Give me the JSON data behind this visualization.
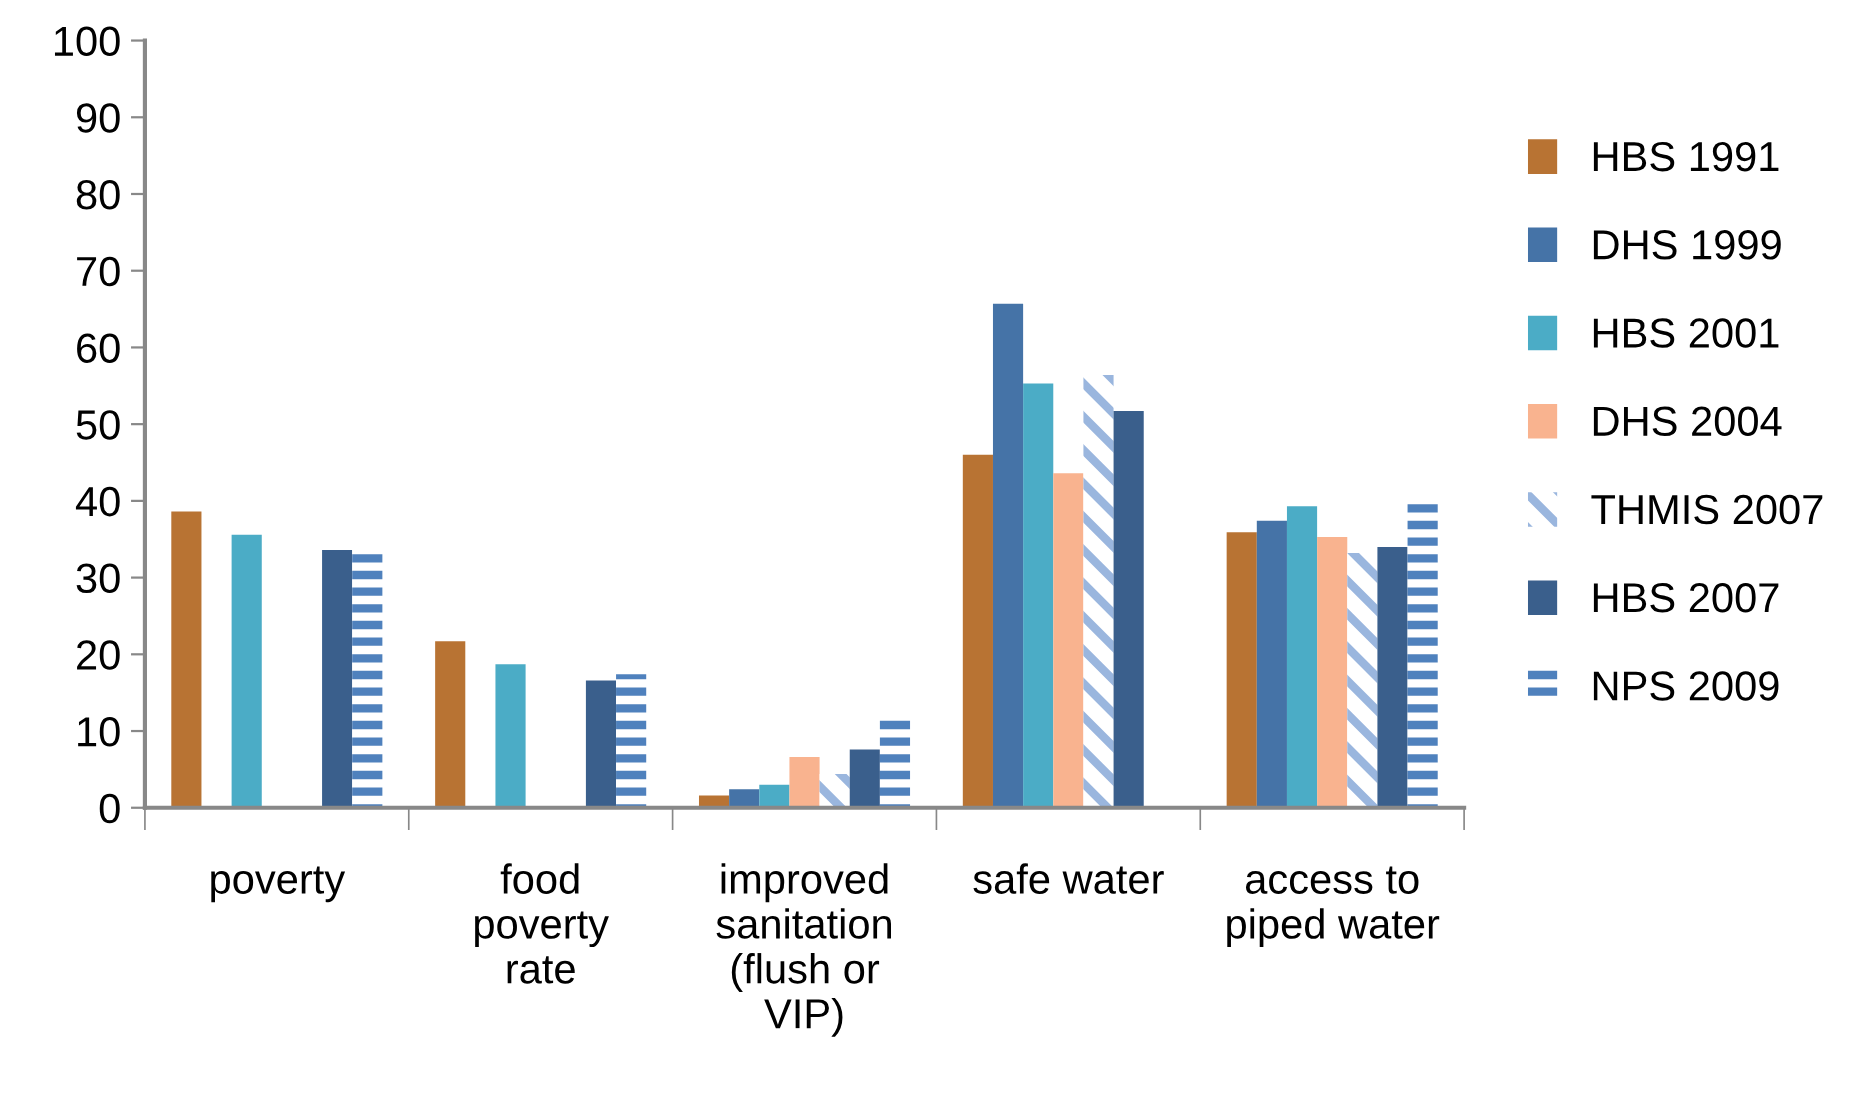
{
  "chart_data": {
    "type": "bar",
    "categories": [
      "poverty",
      "food\npoverty\nrate",
      "improved\nsanitation\n(flush or\nVIP)",
      "safe water",
      "access to\npiped water"
    ],
    "series": [
      {
        "name": "HBS 1991",
        "color": "#b87333",
        "values": [
          38.6,
          21.7,
          1.6,
          46.0,
          35.9
        ]
      },
      {
        "name": "DHS 1999",
        "color": "#4573a7",
        "values": [
          null,
          null,
          2.4,
          65.7,
          37.4
        ]
      },
      {
        "name": "HBS 2001",
        "color": "#4bacc6",
        "values": [
          35.6,
          18.7,
          3.0,
          55.3,
          39.3
        ]
      },
      {
        "name": "DHS 2004",
        "color": "#f9b38f",
        "values": [
          null,
          null,
          6.6,
          43.6,
          35.3
        ]
      },
      {
        "name": "THMIS 2007",
        "color": "#9ab6de",
        "values": [
          null,
          null,
          4.4,
          56.4,
          33.2
        ]
      },
      {
        "name": "HBS 2007",
        "color": "#3a5f8c",
        "values": [
          33.6,
          16.6,
          7.6,
          51.7,
          34.0
        ]
      },
      {
        "name": "NPS 2009",
        "color": "#4f81bd",
        "values": [
          34.0,
          17.4,
          11.7,
          null,
          40.0
        ]
      }
    ],
    "ylim": [
      0,
      100
    ],
    "yticks": [
      0,
      10,
      20,
      30,
      40,
      50,
      60,
      70,
      80,
      90,
      100
    ],
    "legend": "right",
    "grid": false
  }
}
